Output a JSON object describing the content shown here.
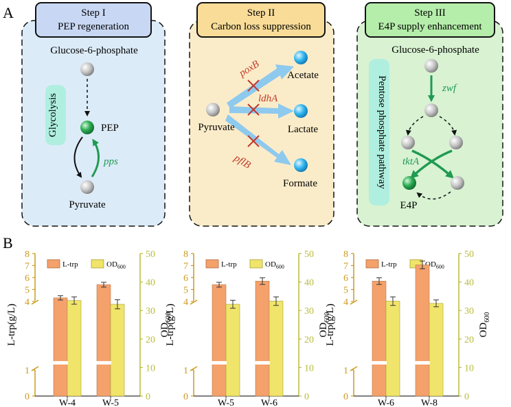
{
  "panel_a": {
    "label": "A",
    "step1": {
      "title1": "Step I",
      "title2": "PEP regeneration",
      "glucose": "Glucose-6-phosphate",
      "glycolysis": "Glycolysis",
      "pep": "PEP",
      "pps": "pps",
      "pyruvate": "Pyruvate"
    },
    "step2": {
      "title1": "Step II",
      "title2": "Carbon loss suppression",
      "poxB": "poxB",
      "ldhA": "ldhA",
      "pflB": "pflB",
      "acetate": "Acetate",
      "lactate": "Lactate",
      "formate": "Formate",
      "pyruvate": "Pyruvate"
    },
    "step3": {
      "title1": "Step III",
      "title2": "E4P supply enhancement",
      "glucose": "Glucose-6-phosphate",
      "ppp": "Pentose phosphate pathway",
      "zwf": "zwf",
      "tktA": "tktA",
      "e4p": "E4P"
    },
    "colors": {
      "step1_bg": "#dcebf8",
      "step2_bg": "#fbecc9",
      "step3_bg": "#d8f2d2",
      "header1": "#c8d8f4",
      "header2": "#f8dc98",
      "header3": "#b5edaa",
      "green_text": "#1f9a52",
      "red_text": "#c0392b",
      "blue_arrow": "#8ec9ee"
    }
  },
  "panel_b": {
    "label": "B",
    "legend_ltrp": "L-trp",
    "legend_od": "OD",
    "legend_od_sub": "600",
    "ylabel_left": "L-trp(g/L)",
    "ylabel_right": "OD",
    "ylabel_right_sub": "600",
    "left_ticks_upper": [
      "4",
      "5",
      "6",
      "7",
      "8"
    ],
    "left_ticks_lower": [
      "0",
      "1"
    ],
    "right_ticks": [
      "0",
      "10",
      "20",
      "30",
      "40",
      "50"
    ],
    "colors": {
      "ltrp_bar": "#f4a16c",
      "od_bar": "#f0e46a",
      "left_axis": "#c99a1e",
      "right_axis": "#b9bc3a"
    }
  },
  "chart_data": [
    {
      "type": "bar",
      "categories": [
        "W-4",
        "W-5"
      ],
      "series": [
        {
          "name": "L-trp",
          "values": [
            4.3,
            5.4
          ],
          "errors": [
            0.18,
            0.2
          ]
        },
        {
          "name": "OD600",
          "values": [
            33.5,
            32.2
          ],
          "errors": [
            1.3,
            1.6
          ]
        }
      ],
      "ylabel": "L-trp(g/L)",
      "y2label": "OD600",
      "ylim": [
        0,
        8
      ],
      "y2lim": [
        0,
        50
      ],
      "y_axis_break": [
        1,
        4
      ]
    },
    {
      "type": "bar",
      "categories": [
        "W-5",
        "W-6"
      ],
      "series": [
        {
          "name": "L-trp",
          "values": [
            5.4,
            5.7
          ],
          "errors": [
            0.2,
            0.28
          ]
        },
        {
          "name": "OD600",
          "values": [
            32.2,
            33.3
          ],
          "errors": [
            1.4,
            1.5
          ]
        }
      ],
      "ylabel": "L-trp(g/L)",
      "y2label": "OD600",
      "ylim": [
        0,
        8
      ],
      "y2lim": [
        0,
        50
      ],
      "y_axis_break": [
        1,
        4
      ]
    },
    {
      "type": "bar",
      "categories": [
        "W-6",
        "W-8"
      ],
      "series": [
        {
          "name": "L-trp",
          "values": [
            5.7,
            7.05
          ],
          "errors": [
            0.28,
            0.32
          ]
        },
        {
          "name": "OD600",
          "values": [
            33.3,
            32.5
          ],
          "errors": [
            1.5,
            1.2
          ]
        }
      ],
      "ylabel": "L-trp(g/L)",
      "y2label": "OD600",
      "ylim": [
        0,
        8
      ],
      "y2lim": [
        0,
        50
      ],
      "y_axis_break": [
        1,
        4
      ]
    }
  ]
}
